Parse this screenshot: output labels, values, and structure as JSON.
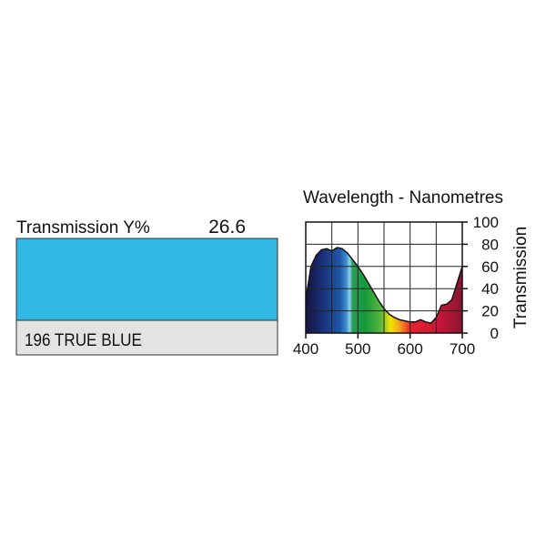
{
  "swatch": {
    "label": "Transmission Y%",
    "value": 26.6,
    "name": "196 TRUE BLUE",
    "color": "#31b8e3"
  },
  "chart_data": {
    "type": "area",
    "title": "Wavelength - Nanometres",
    "y_label": "Transmission",
    "x": [
      400,
      410,
      420,
      430,
      440,
      450,
      460,
      470,
      480,
      490,
      500,
      510,
      520,
      530,
      540,
      550,
      560,
      570,
      580,
      590,
      600,
      610,
      620,
      630,
      640,
      650,
      660,
      670,
      680,
      690,
      700
    ],
    "values": [
      30,
      60,
      70,
      75,
      76,
      74,
      77,
      76,
      72,
      66,
      60,
      53,
      45,
      37,
      29,
      22,
      17,
      14,
      12,
      11,
      10,
      10,
      12,
      10,
      9,
      14,
      25,
      26,
      30,
      45,
      60
    ],
    "xlim": [
      400,
      700
    ],
    "xticks": [
      400,
      500,
      600,
      700
    ],
    "xminor": [
      450,
      550,
      650
    ],
    "ylim": [
      0,
      100
    ],
    "yticks": [
      0,
      20,
      40,
      60,
      80,
      100
    ],
    "grid": true
  }
}
